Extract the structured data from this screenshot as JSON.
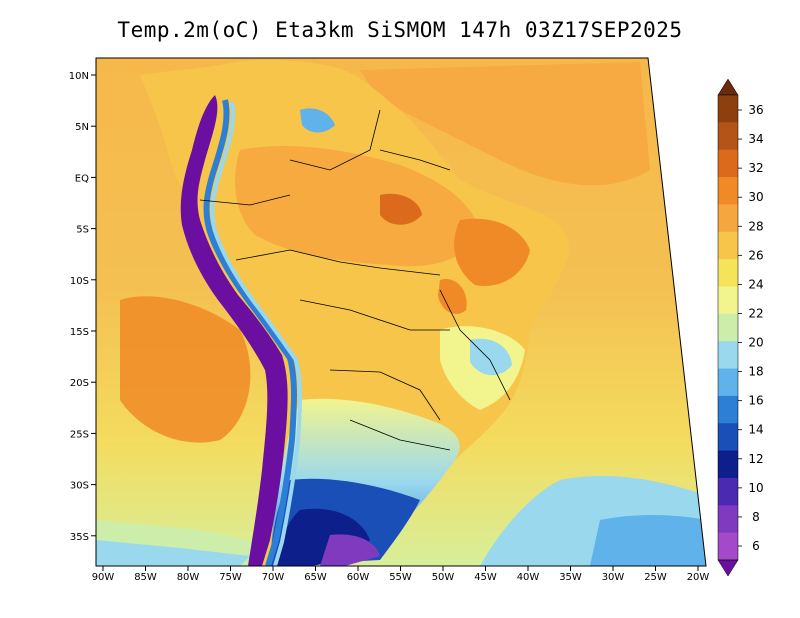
{
  "title": "Temp.2m(oC) Eta3km SiSMOM 147h 03Z17SEP2025",
  "lat_labels": [
    "10N",
    "5N",
    "EQ",
    "5S",
    "10S",
    "15S",
    "20S",
    "25S",
    "30S",
    "35S"
  ],
  "lon_labels": [
    "90W",
    "85W",
    "80W",
    "75W",
    "70W",
    "65W",
    "60W",
    "55W",
    "50W",
    "45W",
    "40W",
    "35W",
    "30W",
    "25W",
    "20W"
  ],
  "colorbar": {
    "ticks": [
      "36",
      "34",
      "32",
      "30",
      "28",
      "26",
      "24",
      "22",
      "20",
      "18",
      "16",
      "14",
      "12",
      "10",
      "8",
      "6"
    ],
    "colors": [
      "#6b2a0c",
      "#8e3f10",
      "#b55418",
      "#dc6a1c",
      "#f08a26",
      "#f6a63e",
      "#f7c54a",
      "#f5e35a",
      "#f2f48e",
      "#cdeeaa",
      "#9ad8ee",
      "#5fb2ea",
      "#2d7fd6",
      "#1a4fb8",
      "#0d1f8a",
      "#4a2ab0",
      "#7f3abf",
      "#a34ac8",
      "#6a0fa0"
    ],
    "min": 6,
    "max": 36
  }
}
